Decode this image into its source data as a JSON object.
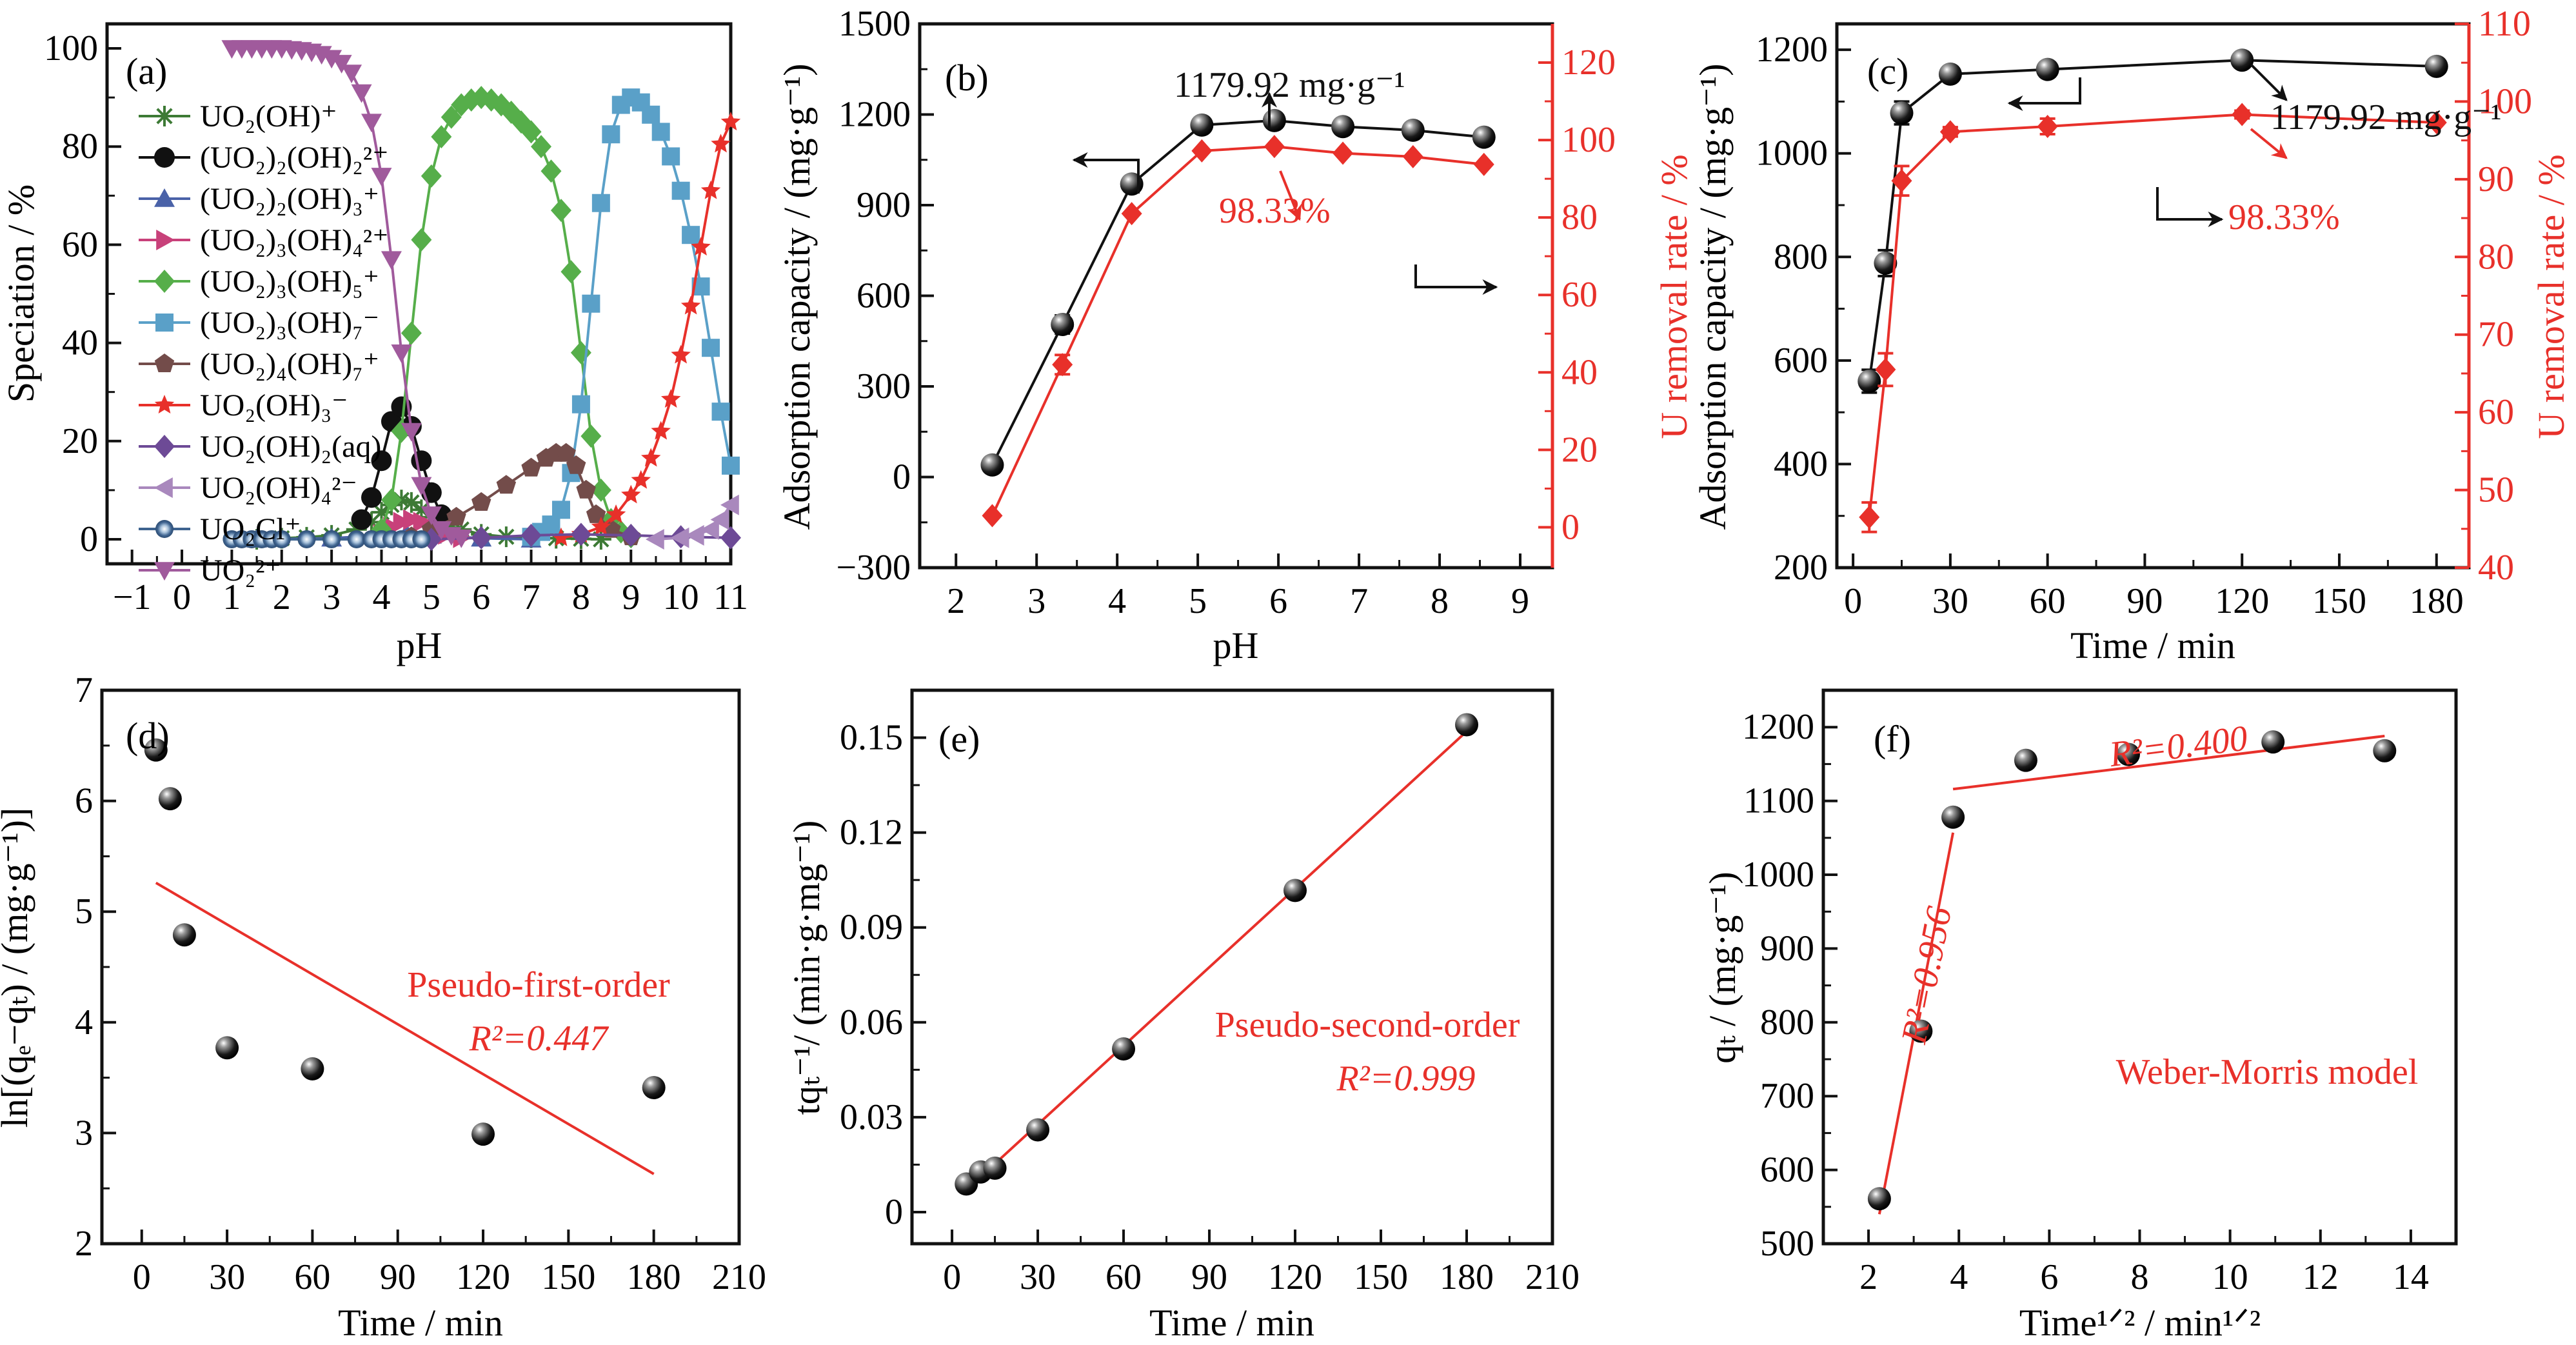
{
  "figure": {
    "colors": {
      "black": "#111111",
      "red": "#e8302a"
    }
  },
  "chart_data": [
    {
      "id": "a",
      "type": "line",
      "panel_label": "(a)",
      "xlabel": "pH",
      "ylabel": "Speciation / %",
      "xlim": [
        -1.5,
        11
      ],
      "ylim": [
        -5,
        105
      ],
      "xticks": [
        -1,
        0,
        1,
        2,
        3,
        4,
        5,
        6,
        7,
        8,
        9,
        10,
        11
      ],
      "xtick_labels": [
        "−1",
        "0",
        "1",
        "2",
        "3",
        "4",
        "5",
        "6",
        "7",
        "8",
        "9",
        "10",
        "11"
      ],
      "yticks": [
        0,
        20,
        40,
        60,
        80,
        100
      ],
      "ytick_labels": [
        "0",
        "20",
        "40",
        "60",
        "80",
        "100"
      ],
      "legend_position": "top-left",
      "series": [
        {
          "name": "UO₂(OH)⁺",
          "color": "#3d7a35",
          "marker": "asterisk",
          "x": [
            1.5,
            2,
            2.5,
            3,
            3.5,
            3.8,
            4.0,
            4.2,
            4.4,
            4.6,
            4.8,
            5.0,
            5.3,
            5.6,
            6,
            6.5,
            7,
            7.5,
            8,
            8.4
          ],
          "y": [
            0,
            0.2,
            0.4,
            0.8,
            2,
            3.5,
            5.5,
            7,
            8,
            7.5,
            6,
            4.5,
            3,
            2,
            1,
            0.5,
            0.3,
            0.2,
            0.1,
            0
          ]
        },
        {
          "name": "(UO₂)₂(OH)₂²⁺",
          "color": "#111111",
          "marker": "circle",
          "x": [
            3.6,
            3.8,
            4.0,
            4.2,
            4.4,
            4.6,
            4.8,
            5.0,
            5.2
          ],
          "y": [
            4,
            8.5,
            16,
            24,
            27,
            23,
            16,
            9.5,
            5
          ]
        },
        {
          "name": "(UO₂)₂(OH)₃⁺",
          "color": "#4a62a8",
          "marker": "triangle-up",
          "x": [
            1.5,
            3,
            4,
            4.5,
            5,
            6,
            7
          ],
          "y": [
            0,
            0.2,
            0.8,
            1.2,
            0.8,
            0.2,
            0
          ]
        },
        {
          "name": "(UO₂)₃(OH)₄²⁺",
          "color": "#c8417a",
          "marker": "triangle-right",
          "x": [
            4.0,
            4.2,
            4.4,
            4.6,
            4.8,
            5.0,
            5.3,
            5.6
          ],
          "y": [
            1,
            2.5,
            3.5,
            4,
            3.5,
            2.5,
            1,
            0.3
          ]
        },
        {
          "name": "(UO₂)₃(OH)₅⁺",
          "color": "#56ae4a",
          "marker": "diamond",
          "x": [
            4.0,
            4.2,
            4.4,
            4.6,
            4.8,
            5.0,
            5.2,
            5.4,
            5.6,
            5.8,
            6.0,
            6.2,
            6.4,
            6.6,
            6.8,
            7.0,
            7.2,
            7.4,
            7.6,
            7.8,
            8.0,
            8.2,
            8.4,
            8.6,
            8.8,
            9.0
          ],
          "y": [
            2,
            8,
            22,
            42,
            61,
            74,
            82,
            86,
            88.5,
            89.5,
            90,
            89.5,
            88.5,
            87,
            85,
            83,
            80,
            75,
            67,
            54.5,
            38,
            21,
            10,
            4,
            1.5,
            0.5
          ]
        },
        {
          "name": "(UO₂)₃(OH)₇⁻",
          "color": "#5aa0c8",
          "marker": "square",
          "x": [
            7.0,
            7.2,
            7.4,
            7.6,
            7.8,
            8.0,
            8.2,
            8.4,
            8.6,
            8.8,
            9.0,
            9.2,
            9.4,
            9.6,
            9.8,
            10.0,
            10.2,
            10.4,
            10.6,
            10.8,
            11.0
          ],
          "y": [
            0.5,
            1.5,
            3,
            6,
            13.5,
            27.5,
            48,
            68.5,
            82.5,
            88.5,
            90,
            89,
            86.5,
            83,
            78,
            71,
            62,
            51.5,
            39,
            26,
            15
          ]
        },
        {
          "name": "(UO₂)₄(OH)₇⁺",
          "color": "#734c4a",
          "marker": "pentagon",
          "x": [
            4.6,
            5.0,
            5.5,
            6.0,
            6.5,
            7.0,
            7.3,
            7.5,
            7.7,
            7.9,
            8.1,
            8.3,
            8.6,
            9.0
          ],
          "y": [
            0.5,
            2,
            4.5,
            7.5,
            11,
            14.5,
            16.5,
            17.5,
            17.5,
            15,
            10,
            5,
            2,
            0.5
          ]
        },
        {
          "name": "UO₂(OH)₃⁻",
          "color": "#e8302a",
          "marker": "star",
          "x": [
            7.6,
            8.0,
            8.4,
            8.7,
            9.0,
            9.2,
            9.4,
            9.6,
            9.8,
            10.0,
            10.2,
            10.4,
            10.6,
            10.8,
            11.0
          ],
          "y": [
            0.3,
            1,
            2.5,
            5,
            9,
            12,
            16.5,
            22,
            28.5,
            37.5,
            47.5,
            59.5,
            71,
            80.5,
            85
          ]
        },
        {
          "name": "UO₂(OH)₂(aq)",
          "color": "#6d4a96",
          "marker": "diamond",
          "x": [
            5,
            6,
            7,
            8,
            9,
            10,
            11
          ],
          "y": [
            0,
            0.3,
            0.8,
            1,
            0.8,
            0.5,
            0.3
          ]
        },
        {
          "name": "UO₂(OH)₄²⁻",
          "color": "#a988bd",
          "marker": "triangle-left",
          "x": [
            9.5,
            10.0,
            10.3,
            10.6,
            10.8,
            11.0
          ],
          "y": [
            0,
            0.3,
            0.8,
            2,
            4,
            7
          ]
        },
        {
          "name": "UO₂Cl⁺",
          "color": "#3e638f",
          "marker": "circle-ring",
          "x": [
            1.0,
            1.2,
            1.4,
            1.6,
            1.8,
            2.0,
            2.5,
            3.0,
            3.5,
            3.8,
            4.0,
            4.2,
            4.4,
            4.6,
            4.8
          ],
          "y": [
            0,
            0,
            0,
            0,
            0,
            0,
            0,
            0,
            0,
            0,
            0,
            0,
            0,
            0,
            0
          ]
        },
        {
          "name": "UO₂²⁺",
          "color": "#a05a9c",
          "marker": "triangle-down",
          "x": [
            1.0,
            1.2,
            1.4,
            1.6,
            1.8,
            2.0,
            2.2,
            2.4,
            2.6,
            2.8,
            3.0,
            3.2,
            3.4,
            3.6,
            3.8,
            4.0,
            4.2,
            4.4,
            4.6,
            4.8,
            5.0,
            5.2,
            5.4,
            5.6
          ],
          "y": [
            100,
            100,
            100,
            100,
            100,
            100,
            99.8,
            99.6,
            99.3,
            98.8,
            98,
            97,
            95,
            91,
            85,
            74,
            57,
            38,
            22,
            11,
            5,
            2,
            0.8,
            0.3
          ]
        }
      ]
    },
    {
      "id": "b",
      "type": "line",
      "panel_label": "(b)",
      "xlabel": "pH",
      "ylabel": "Adsorption capacity / (mg·g⁻¹)",
      "ylabel_right": "U removal rate / %",
      "xlim": [
        1.55,
        9.4
      ],
      "ylim": [
        -300,
        1500
      ],
      "ylim_right": [
        -10.43,
        130
      ],
      "xticks": [
        2,
        3,
        4,
        5,
        6,
        7,
        8,
        9
      ],
      "xtick_labels": [
        "2",
        "3",
        "4",
        "5",
        "6",
        "7",
        "8",
        "9"
      ],
      "yticks": [
        -300,
        0,
        300,
        600,
        900,
        1200,
        1500
      ],
      "ytick_labels": [
        "−300",
        "0",
        "300",
        "600",
        "900",
        "1200",
        "1500"
      ],
      "yticks_right": [
        0,
        20,
        40,
        60,
        80,
        100,
        120
      ],
      "ytick_labels_right": [
        "0",
        "20",
        "40",
        "60",
        "80",
        "100",
        "120"
      ],
      "annotations": [
        "1179.92 mg·g⁻¹",
        "98.33%"
      ],
      "series": [
        {
          "name": "Adsorption capacity",
          "axis": "left",
          "color": "#111111",
          "marker": "sphere",
          "x": [
            2.45,
            3.32,
            4.18,
            5.05,
            5.95,
            6.8,
            7.67,
            8.55
          ],
          "y": [
            40,
            505,
            970,
            1165,
            1180,
            1160,
            1148,
            1125
          ],
          "err": [
            0,
            30,
            0,
            0,
            0,
            0,
            0,
            0
          ]
        },
        {
          "name": "U removal rate",
          "axis": "right",
          "color": "#e8302a",
          "marker": "diamond",
          "x": [
            2.45,
            3.32,
            4.18,
            5.05,
            5.95,
            6.8,
            7.67,
            8.55
          ],
          "y": [
            3,
            42,
            81,
            97.2,
            98.33,
            96.6,
            95.7,
            93.7
          ],
          "err": [
            0,
            2.5,
            0,
            0,
            0,
            0,
            0,
            0
          ]
        }
      ]
    },
    {
      "id": "c",
      "type": "line",
      "panel_label": "(c)",
      "xlabel": "Time / min",
      "ylabel": "Adsorption capacity / (mg·g⁻¹)",
      "ylabel_right": "U removal rate / %",
      "xlim": [
        -5,
        190
      ],
      "ylim": [
        200,
        1250
      ],
      "ylim_right": [
        40,
        110
      ],
      "xticks": [
        0,
        30,
        60,
        90,
        120,
        150,
        180
      ],
      "xtick_labels": [
        "0",
        "30",
        "60",
        "90",
        "120",
        "150",
        "180"
      ],
      "yticks": [
        200,
        400,
        600,
        800,
        1000,
        1200
      ],
      "ytick_labels": [
        "200",
        "400",
        "600",
        "800",
        "1000",
        "1200"
      ],
      "yticks_right": [
        40,
        50,
        60,
        70,
        80,
        90,
        100,
        110
      ],
      "ytick_labels_right": [
        "40",
        "50",
        "60",
        "70",
        "80",
        "90",
        "100",
        "110"
      ],
      "annotations": [
        "1179.92 mg·g⁻¹",
        "98.33%"
      ],
      "series": [
        {
          "name": "Adsorption capacity",
          "axis": "left",
          "color": "#111111",
          "marker": "sphere",
          "x": [
            5,
            10,
            15,
            30,
            60,
            120,
            180
          ],
          "y": [
            560,
            788,
            1078,
            1153,
            1162,
            1180,
            1168
          ],
          "err": [
            22,
            25,
            22,
            8,
            12,
            6,
            0
          ]
        },
        {
          "name": "U removal rate",
          "axis": "right",
          "color": "#e8302a",
          "marker": "diamond",
          "x": [
            5,
            10,
            15,
            30,
            60,
            120,
            180
          ],
          "y": [
            46.5,
            65.5,
            89.8,
            96.1,
            96.8,
            98.33,
            97.3
          ],
          "err": [
            1.9,
            2.1,
            1.9,
            0.6,
            1.0,
            0.5,
            0
          ]
        }
      ]
    },
    {
      "id": "d",
      "type": "scatter",
      "panel_label": "(d)",
      "xlabel": "Time / min",
      "ylabel": "ln[(qₑ−qₜ) / (mg·g⁻¹)]",
      "xlim": [
        -14,
        210
      ],
      "ylim": [
        2,
        7
      ],
      "xticks": [
        0,
        30,
        60,
        90,
        120,
        150,
        180,
        210
      ],
      "xtick_labels": [
        "0",
        "30",
        "60",
        "90",
        "120",
        "150",
        "180",
        "210"
      ],
      "yticks": [
        2,
        3,
        4,
        5,
        6,
        7
      ],
      "ytick_labels": [
        "2",
        "3",
        "4",
        "5",
        "6",
        "7"
      ],
      "fit_label": "Pseudo-first-order",
      "r2_label": "R²=0.447",
      "points": {
        "x": [
          5,
          10,
          15,
          30,
          60,
          120,
          180
        ],
        "y": [
          6.46,
          6.02,
          4.79,
          3.77,
          3.58,
          2.99,
          3.41
        ]
      },
      "fit_lines": [
        {
          "x": [
            5,
            180
          ],
          "y": [
            5.26,
            2.63
          ]
        }
      ]
    },
    {
      "id": "e",
      "type": "scatter",
      "panel_label": "(e)",
      "xlabel": "Time / min",
      "ylabel": "tqₜ⁻¹/ (min·g·mg⁻¹)",
      "xlim": [
        -14,
        210
      ],
      "ylim": [
        -0.01,
        0.165
      ],
      "xticks": [
        0,
        30,
        60,
        90,
        120,
        150,
        180,
        210
      ],
      "xtick_labels": [
        "0",
        "30",
        "60",
        "90",
        "120",
        "150",
        "180",
        "210"
      ],
      "yticks": [
        0,
        0.03,
        0.06,
        0.09,
        0.12,
        0.15
      ],
      "ytick_labels": [
        "0",
        "0.03",
        "0.06",
        "0.09",
        "0.12",
        "0.15"
      ],
      "fit_label": "Pseudo-second-order",
      "r2_label": "R²=0.999",
      "points": {
        "x": [
          5,
          10,
          15,
          30,
          60,
          120,
          180
        ],
        "y": [
          0.0089,
          0.0127,
          0.0139,
          0.026,
          0.0516,
          0.1017,
          0.1541
        ]
      },
      "fit_lines": [
        {
          "x": [
            5,
            180
          ],
          "y": [
            0.007,
            0.152
          ]
        }
      ]
    },
    {
      "id": "f",
      "type": "scatter",
      "panel_label": "(f)",
      "xlabel": "Time¹ᐟ² / min¹ᐟ²",
      "ylabel": "qₜ / (mg·g⁻¹)",
      "xlim": [
        1,
        15
      ],
      "ylim": [
        500,
        1250
      ],
      "xticks": [
        2,
        4,
        6,
        8,
        10,
        12,
        14
      ],
      "xtick_labels": [
        "2",
        "4",
        "6",
        "8",
        "10",
        "12",
        "14"
      ],
      "yticks": [
        500,
        600,
        700,
        800,
        900,
        1000,
        1100,
        1200
      ],
      "ytick_labels": [
        "500",
        "600",
        "700",
        "800",
        "900",
        "1000",
        "1100",
        "1200"
      ],
      "fit_label": "Weber-Morris model",
      "r2_labels": [
        "R²=0.956",
        "R²=0.400"
      ],
      "points": {
        "x": [
          2.24,
          3.16,
          3.87,
          5.48,
          7.75,
          10.95,
          13.42
        ],
        "y": [
          561,
          788,
          1078,
          1155,
          1163,
          1180,
          1168
        ]
      },
      "fit_lines": [
        {
          "x": [
            2.24,
            3.87
          ],
          "y": [
            540,
            1057
          ]
        },
        {
          "x": [
            3.87,
            13.42
          ],
          "y": [
            1116,
            1188
          ]
        }
      ]
    }
  ]
}
